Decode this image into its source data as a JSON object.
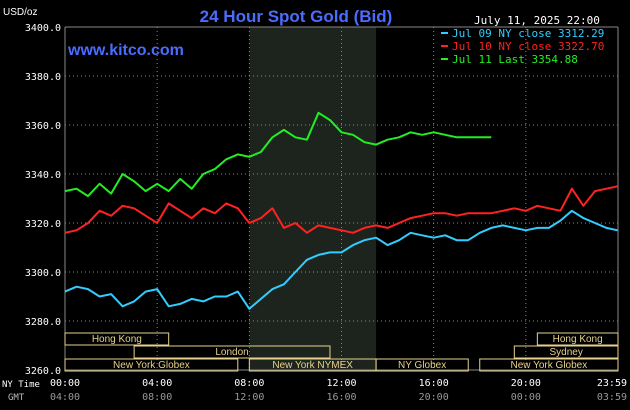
{
  "header": {
    "unit": "USD/oz",
    "title": "24 Hour Spot Gold (Bid)",
    "date": "July 11, 2025 22:00",
    "watermark": "www.kitco.com"
  },
  "legend": [
    {
      "label": "Jul 09 NY close 3312.29",
      "color": "#33ccff"
    },
    {
      "label": "Jul 10 NY close 3322.70",
      "color": "#ff2222"
    },
    {
      "label": "Jul 11 Last 3354.88",
      "color": "#22ee22"
    }
  ],
  "sessions": {
    "top": [
      {
        "label": "Hong Kong",
        "from": 0.0,
        "to": 4.5
      },
      {
        "label": "Hong Kong",
        "from": 20.5,
        "to": 24.0
      }
    ],
    "middle": [
      {
        "label": "London",
        "from": 3.0,
        "to": 11.5
      },
      {
        "label": "Sydney",
        "from": 19.5,
        "to": 24.0
      }
    ],
    "bottom": [
      {
        "label": "New York Globex",
        "from": 0.0,
        "to": 7.5
      },
      {
        "label": "New York NYMEX",
        "from": 8.0,
        "to": 13.5
      },
      {
        "label": "NY Globex",
        "from": 13.5,
        "to": 17.5
      },
      {
        "label": "New York Globex",
        "from": 18.0,
        "to": 24.0
      }
    ]
  },
  "footer": {
    "ny_label": "NY Time",
    "gmt_label": "GMT",
    "ny_ticks": [
      "00:00",
      "04:00",
      "08:00",
      "12:00",
      "16:00",
      "20:00",
      "23:59"
    ],
    "gmt_ticks": [
      "04:00",
      "08:00",
      "12:00",
      "16:00",
      "20:00",
      "00:00",
      "03:59"
    ]
  },
  "colors": {
    "background": "#000000",
    "grid": "#888888",
    "title": "#4a6cff",
    "watermark": "#4a6cff",
    "nymex_shade": "#1d241d",
    "session_box": "#e6d28c"
  },
  "chart_data": {
    "type": "line",
    "title": "24 Hour Spot Gold (Bid)",
    "ylabel": "USD/oz",
    "xlabel": "",
    "xlim": [
      0,
      24
    ],
    "ylim": [
      3260,
      3400
    ],
    "yticks": [
      3400.0,
      3380.0,
      3360.0,
      3340.0,
      3320.0,
      3300.0,
      3280.0,
      3260.0
    ],
    "xtick_labels": [
      "00:00",
      "04:00",
      "08:00",
      "12:00",
      "16:00",
      "20:00",
      "23:59"
    ],
    "x_unit": "hours, NY time",
    "grid": true,
    "shaded_range": [
      8.0,
      13.5
    ],
    "series": [
      {
        "name": "Jul 09 NY close 3312.29",
        "color": "#33ccff",
        "x": [
          0,
          0.5,
          1,
          1.5,
          2,
          2.5,
          3,
          3.5,
          4,
          4.5,
          5,
          5.5,
          6,
          6.5,
          7,
          7.5,
          8,
          8.5,
          9,
          9.5,
          10,
          10.5,
          11,
          11.5,
          12,
          12.5,
          13,
          13.5,
          14,
          14.5,
          15,
          15.5,
          16,
          16.5,
          17,
          17.5,
          18,
          18.5,
          19,
          19.5,
          20,
          20.5,
          21,
          21.5,
          22,
          22.5,
          23,
          23.5,
          23.98
        ],
        "y": [
          3292,
          3294,
          3293,
          3290,
          3291,
          3286,
          3288,
          3292,
          3293,
          3286,
          3287,
          3289,
          3288,
          3290,
          3290,
          3292,
          3285,
          3289,
          3293,
          3295,
          3300,
          3305,
          3307,
          3308,
          3308,
          3311,
          3313,
          3314,
          3311,
          3313,
          3316,
          3315,
          3314,
          3315,
          3313,
          3313,
          3316,
          3318,
          3319,
          3318,
          3317,
          3318,
          3318,
          3321,
          3325,
          3322,
          3320,
          3318,
          3317
        ]
      },
      {
        "name": "Jul 10 NY close 3322.70",
        "color": "#ff2222",
        "x": [
          0,
          0.5,
          1,
          1.5,
          2,
          2.5,
          3,
          3.5,
          4,
          4.5,
          5,
          5.5,
          6,
          6.5,
          7,
          7.5,
          8,
          8.5,
          9,
          9.5,
          10,
          10.5,
          11,
          11.5,
          12,
          12.5,
          13,
          13.5,
          14,
          14.5,
          15,
          15.5,
          16,
          16.5,
          17,
          17.5,
          18,
          18.5,
          19,
          19.5,
          20,
          20.5,
          21,
          21.5,
          22,
          22.5,
          23,
          23.5,
          23.98
        ],
        "y": [
          3316,
          3317,
          3320,
          3325,
          3323,
          3327,
          3326,
          3323,
          3320,
          3328,
          3325,
          3322,
          3326,
          3324,
          3328,
          3326,
          3320,
          3322,
          3326,
          3318,
          3320,
          3316,
          3319,
          3318,
          3317,
          3316,
          3318,
          3319,
          3318,
          3320,
          3322,
          3323,
          3324,
          3324,
          3323,
          3324,
          3324,
          3324,
          3325,
          3326,
          3325,
          3327,
          3326,
          3325,
          3334,
          3327,
          3333,
          3334,
          3335
        ]
      },
      {
        "name": "Jul 11 Last 3354.88",
        "color": "#22ee22",
        "x": [
          0,
          0.5,
          1,
          1.5,
          2,
          2.5,
          3,
          3.5,
          4,
          4.5,
          5,
          5.5,
          6,
          6.5,
          7,
          7.5,
          8,
          8.5,
          9,
          9.5,
          10,
          10.5,
          11,
          11.5,
          12,
          12.5,
          13,
          13.5,
          14,
          14.5,
          15,
          15.5,
          16,
          16.5,
          17,
          17.5,
          18,
          18.5
        ],
        "y": [
          3333,
          3334,
          3331,
          3336,
          3332,
          3340,
          3337,
          3333,
          3336,
          3333,
          3338,
          3334,
          3340,
          3342,
          3346,
          3348,
          3347,
          3349,
          3355,
          3358,
          3355,
          3354,
          3365,
          3362,
          3357,
          3356,
          3353,
          3352,
          3354,
          3355,
          3357,
          3356,
          3357,
          3356,
          3355,
          3355,
          3355,
          3355
        ]
      }
    ]
  }
}
